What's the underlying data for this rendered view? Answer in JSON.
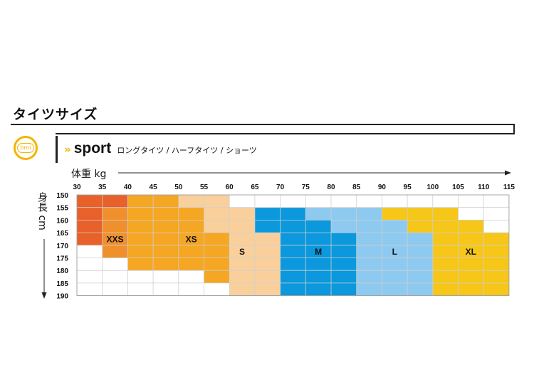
{
  "header": {
    "title": "タイツサイズ",
    "chevron": "»",
    "brand": "sport",
    "subtitle": "ロングタイツ / ハーフタイツ / ショーツ",
    "logo_text": "bmi"
  },
  "colors": {
    "XXS_dark": "#e8602a",
    "XXS_light": "#f0902c",
    "XS": "#f5a623",
    "S": "#f9d09c",
    "M": "#0b98dc",
    "L": "#8ecaf0",
    "XL": "#f6c619",
    "empty": "#ffffff",
    "grid": "#cfcfcf"
  },
  "chart_data": {
    "type": "heatmap",
    "xlabel": "体重 kg",
    "ylabel": "身長 cm",
    "x": [
      30,
      35,
      40,
      45,
      50,
      55,
      60,
      65,
      70,
      75,
      80,
      85,
      90,
      95,
      100,
      105,
      110,
      115
    ],
    "y": [
      150,
      155,
      160,
      165,
      170,
      175,
      180,
      185,
      190
    ],
    "size_labels": [
      {
        "size": "XXS",
        "weight": 37.5,
        "height": 167.5
      },
      {
        "size": "XS",
        "weight": 52.5,
        "height": 167.5
      },
      {
        "size": "S",
        "weight": 62.5,
        "height": 172.5
      },
      {
        "size": "M",
        "weight": 77.5,
        "height": 172.5
      },
      {
        "size": "L",
        "weight": 92.5,
        "height": 172.5
      },
      {
        "size": "XL",
        "weight": 107.5,
        "height": 172.5
      }
    ],
    "grid": [
      [
        "XXS_dark",
        "XXS_dark",
        "XS",
        "XS",
        "S",
        "S",
        "",
        "",
        "",
        "",
        "",
        "",
        "",
        "",
        "",
        "",
        ""
      ],
      [
        "XXS_dark",
        "XXS_light",
        "XS",
        "XS",
        "XS",
        "S",
        "S",
        "M",
        "M",
        "L",
        "L",
        "L",
        "XL",
        "XL",
        "XL",
        "",
        ""
      ],
      [
        "XXS_dark",
        "XXS_light",
        "XS",
        "XS",
        "XS",
        "S",
        "S",
        "M",
        "M",
        "M",
        "L",
        "L",
        "L",
        "XL",
        "XL",
        "XL",
        ""
      ],
      [
        "XXS_dark",
        "XXS_light",
        "XS",
        "XS",
        "XS",
        "XS",
        "S",
        "S",
        "M",
        "M",
        "M",
        "L",
        "L",
        "L",
        "XL",
        "XL",
        "XL"
      ],
      [
        "",
        "XXS_light",
        "XS",
        "XS",
        "XS",
        "XS",
        "S",
        "S",
        "M",
        "M",
        "M",
        "L",
        "L",
        "L",
        "XL",
        "XL",
        "XL"
      ],
      [
        "",
        "",
        "XS",
        "XS",
        "XS",
        "XS",
        "S",
        "S",
        "M",
        "M",
        "M",
        "L",
        "L",
        "L",
        "XL",
        "XL",
        "XL"
      ],
      [
        "",
        "",
        "",
        "",
        "",
        "XS",
        "S",
        "S",
        "M",
        "M",
        "M",
        "L",
        "L",
        "L",
        "XL",
        "XL",
        "XL"
      ],
      [
        "",
        "",
        "",
        "",
        "",
        "",
        "S",
        "S",
        "M",
        "M",
        "M",
        "L",
        "L",
        "L",
        "XL",
        "XL",
        "XL"
      ]
    ]
  }
}
